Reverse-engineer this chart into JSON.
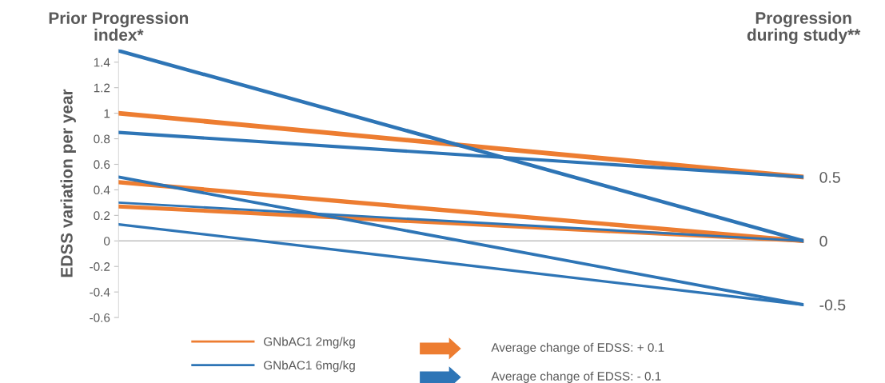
{
  "chart_data": {
    "type": "line",
    "ylabel": "EDSS variation per year",
    "categories": [
      "Prior Progression index*",
      "Progression during study**"
    ],
    "series": [
      {
        "name": "GNbAC1 2mg/kg",
        "color": "#ed7d31",
        "values": [
          1.0,
          0.5
        ]
      },
      {
        "color": "#ed7d31",
        "values": [
          0.46,
          0
        ]
      },
      {
        "color": "#ed7d31",
        "values": [
          0.27,
          0
        ]
      },
      {
        "name": "GNbAC1 6mg/kg",
        "color": "#2e75b6",
        "values": [
          1.49,
          0
        ]
      },
      {
        "color": "#2e75b6",
        "values": [
          0.85,
          0.5
        ]
      },
      {
        "color": "#2e75b6",
        "values": [
          0.5,
          -0.5
        ]
      },
      {
        "color": "#2e75b6",
        "values": [
          0.13,
          -0.5
        ]
      },
      {
        "color": "#2e75b6",
        "values": [
          0.3,
          0
        ]
      }
    ],
    "ylim": [
      -0.6,
      1.5
    ],
    "yticks": [
      -0.6,
      -0.4,
      -0.2,
      0,
      0.2,
      0.4,
      0.6,
      0.8,
      1,
      1.2,
      1.4
    ],
    "y2lim": [
      -0.6,
      1.5
    ],
    "y2ticks": [
      -0.5,
      0,
      0.5
    ],
    "ref_lines": [
      {
        "axis": "y",
        "value": 0,
        "color": "#bfbfbf"
      }
    ],
    "annotations": [
      "Average change of EDSS: + 0.1",
      "Average change of EDSS: - 0.1"
    ],
    "legend": "bottom",
    "grid": false,
    "marker": "none",
    "line_style": "solid"
  }
}
